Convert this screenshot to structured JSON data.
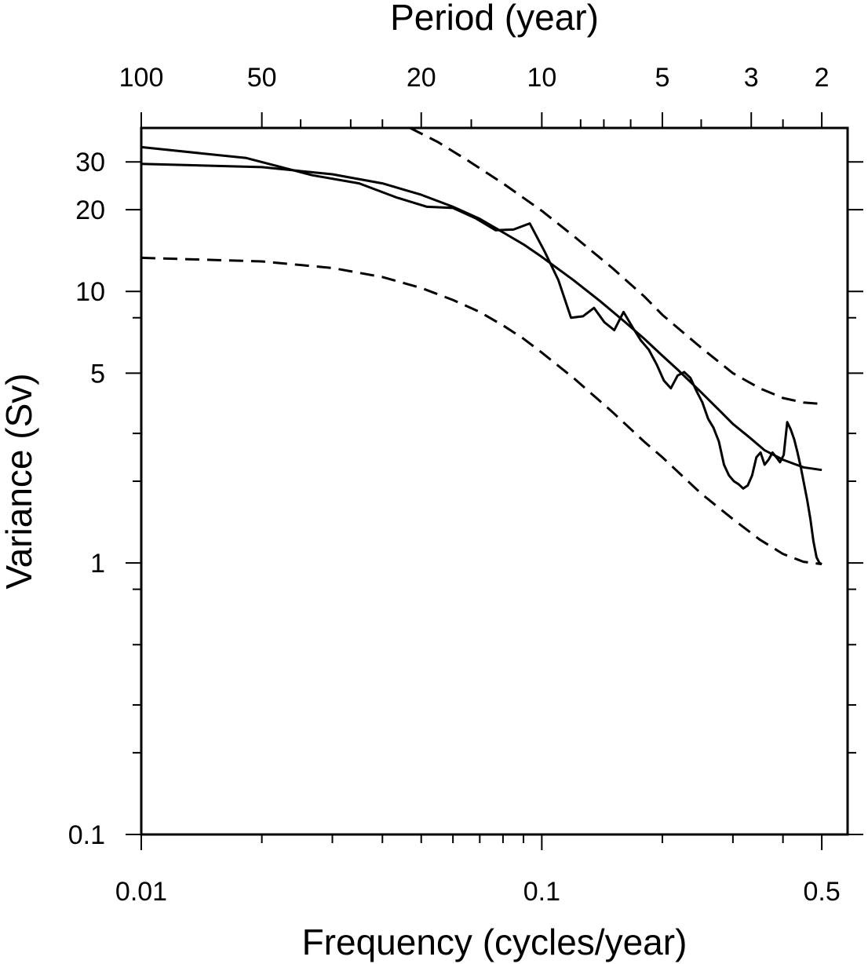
{
  "chart_data": {
    "type": "line",
    "x_scale": "log",
    "y_scale": "log",
    "xlim": [
      0.01,
      0.58
    ],
    "ylim": [
      0.1,
      40
    ],
    "xlabel": "Frequency (cycles/year)",
    "ylabel": "Variance (Sv)",
    "top_axis_label": "Period (year)",
    "x_ticks": [
      {
        "value": 0.01,
        "label": "0.01"
      },
      {
        "value": 0.1,
        "label": "0.1"
      },
      {
        "value": 0.5,
        "label": "0.5"
      }
    ],
    "x_minor_ticks": [
      0.02,
      0.03,
      0.04,
      0.05,
      0.06,
      0.07,
      0.08,
      0.09,
      0.2,
      0.3,
      0.4
    ],
    "y_ticks": [
      {
        "value": 0.1,
        "label": "0.1"
      },
      {
        "value": 1,
        "label": "1"
      },
      {
        "value": 5,
        "label": "5"
      },
      {
        "value": 10,
        "label": "10"
      },
      {
        "value": 20,
        "label": "20"
      },
      {
        "value": 30,
        "label": "30"
      }
    ],
    "y_minor_ticks": [
      0.2,
      0.3,
      0.5,
      0.8,
      2,
      3,
      8
    ],
    "top_ticks": [
      {
        "period": 100,
        "label": "100"
      },
      {
        "period": 50,
        "label": "50"
      },
      {
        "period": 20,
        "label": "20"
      },
      {
        "period": 10,
        "label": "10"
      },
      {
        "period": 5,
        "label": "5"
      },
      {
        "period": 3,
        "label": "3"
      },
      {
        "period": 2,
        "label": "2"
      }
    ],
    "top_minor_ticks": [
      40,
      30,
      25,
      15,
      8,
      7,
      6,
      4,
      2.5
    ],
    "series": [
      {
        "style": "solid",
        "x": [
          0.01,
          0.0183,
          0.0267,
          0.035,
          0.0433,
          0.0517,
          0.06,
          0.0683,
          0.0767,
          0.085,
          0.0933,
          0.1017,
          0.11,
          0.1183,
          0.1267,
          0.135,
          0.1433,
          0.1517,
          0.16,
          0.1683,
          0.1767,
          0.185,
          0.1933,
          0.2017,
          0.21,
          0.2183,
          0.2267,
          0.235,
          0.2433,
          0.2517,
          0.26,
          0.2683,
          0.2767,
          0.285,
          0.2933,
          0.3017,
          0.31,
          0.3183,
          0.3267,
          0.335,
          0.3433,
          0.3517,
          0.36,
          0.3683,
          0.3767,
          0.385,
          0.3933,
          0.4017,
          0.41,
          0.4183,
          0.4267,
          0.435,
          0.4433,
          0.4517,
          0.46,
          0.4683,
          0.4767,
          0.485,
          0.4933,
          0.5
        ],
        "y": [
          34.0,
          31.0,
          26.8,
          25.0,
          22.2,
          20.5,
          20.3,
          18.6,
          16.8,
          16.9,
          17.8,
          14.0,
          11.0,
          8.0,
          8.1,
          8.7,
          7.7,
          7.2,
          8.4,
          7.4,
          6.6,
          6.1,
          5.4,
          4.7,
          4.4,
          4.9,
          5.05,
          4.8,
          4.3,
          3.9,
          3.4,
          3.15,
          2.8,
          2.3,
          2.1,
          2.0,
          1.95,
          1.88,
          1.93,
          2.1,
          2.45,
          2.55,
          2.3,
          2.4,
          2.55,
          2.45,
          2.35,
          2.5,
          3.3,
          3.1,
          2.85,
          2.55,
          2.25,
          1.95,
          1.7,
          1.45,
          1.2,
          1.05,
          1.0,
          0.99
        ]
      },
      {
        "style": "solid",
        "x": [
          0.01,
          0.02,
          0.03,
          0.04,
          0.05,
          0.06,
          0.07,
          0.08,
          0.09,
          0.1,
          0.12,
          0.14,
          0.16,
          0.18,
          0.2,
          0.22,
          0.25,
          0.28,
          0.3,
          0.33,
          0.36,
          0.4,
          0.45,
          0.5
        ],
        "y": [
          29.5,
          28.7,
          27.0,
          25.0,
          22.7,
          20.5,
          18.5,
          16.5,
          14.9,
          13.4,
          11.0,
          9.2,
          7.8,
          6.7,
          5.8,
          5.1,
          4.25,
          3.6,
          3.25,
          2.9,
          2.6,
          2.4,
          2.25,
          2.2
        ]
      },
      {
        "style": "dashed",
        "x": [
          0.0469,
          0.055,
          0.065,
          0.08,
          0.1,
          0.12,
          0.15,
          0.18,
          0.2,
          0.25,
          0.3,
          0.35,
          0.4,
          0.45,
          0.5
        ],
        "y": [
          40.0,
          35.5,
          30.5,
          25.0,
          19.8,
          16.0,
          12.2,
          9.6,
          8.2,
          6.2,
          5.0,
          4.4,
          4.05,
          3.9,
          3.85
        ]
      },
      {
        "style": "dashed",
        "x": [
          0.01,
          0.02,
          0.03,
          0.04,
          0.05,
          0.06,
          0.07,
          0.08,
          0.09,
          0.1,
          0.12,
          0.15,
          0.18,
          0.2,
          0.25,
          0.3,
          0.35,
          0.4,
          0.45,
          0.5
        ],
        "y": [
          13.3,
          12.9,
          12.2,
          11.3,
          10.3,
          9.3,
          8.4,
          7.5,
          6.7,
          5.95,
          4.8,
          3.6,
          2.8,
          2.45,
          1.8,
          1.45,
          1.22,
          1.08,
          1.01,
          0.99
        ]
      }
    ]
  }
}
